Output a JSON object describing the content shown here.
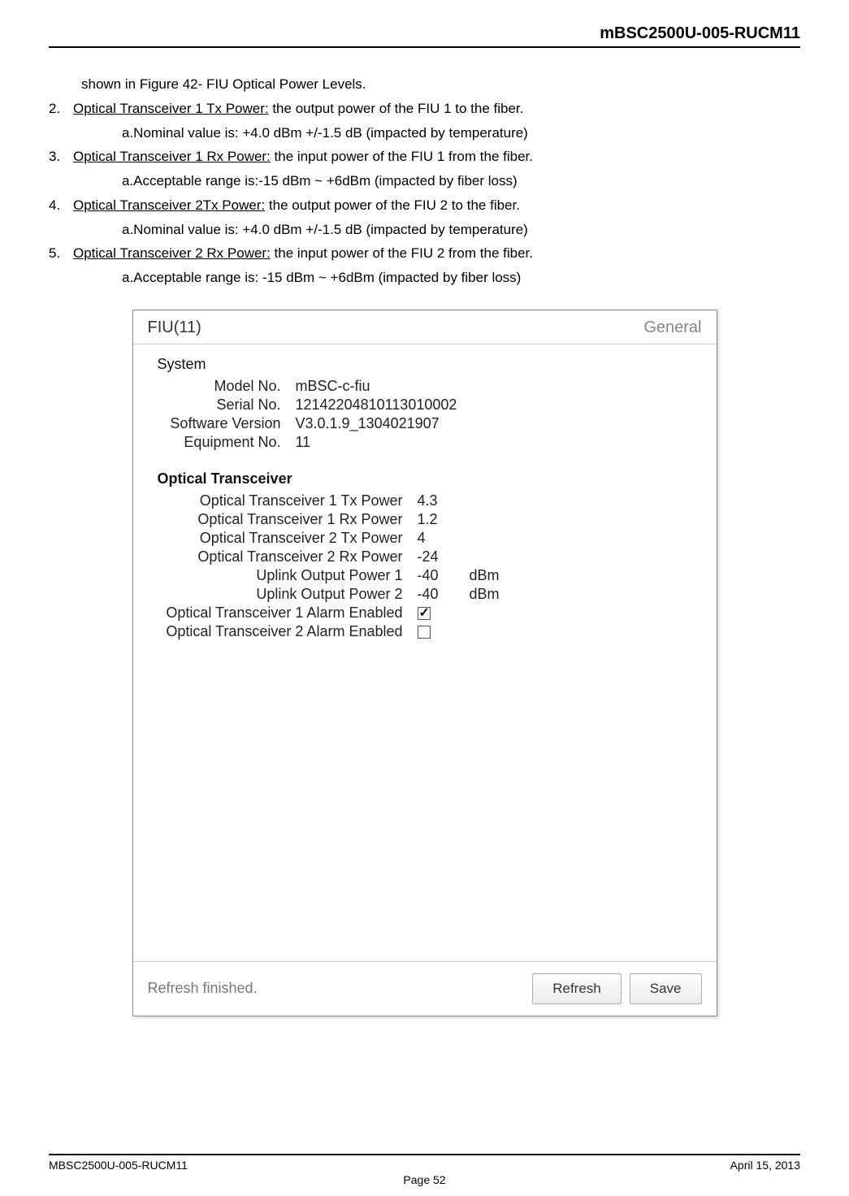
{
  "header": {
    "doc_title": "mBSC2500U-005-RUCM11"
  },
  "intro_line": "shown in Figure 42- FIU Optical Power Levels.",
  "items": [
    {
      "num": "2.",
      "title": "Optical Transceiver 1 Tx Power:",
      "desc": " the output power of the FIU 1 to the fiber.",
      "sub": "a.Nominal value is: +4.0 dBm +/-1.5 dB (impacted by temperature)"
    },
    {
      "num": "3.",
      "title": "Optical Transceiver 1 Rx Power:",
      "desc": " the input power of the FIU 1 from the fiber.",
      "sub": "a.Acceptable range is:-15 dBm ~ +6dBm (impacted by fiber loss)"
    },
    {
      "num": "4.",
      "title": "Optical Transceiver 2Tx Power:",
      "desc": " the output power of the FIU 2 to the fiber.",
      "sub": "a.Nominal value is: +4.0 dBm +/-1.5 dB (impacted by temperature)"
    },
    {
      "num": "5.",
      "title": "Optical Transceiver 2 Rx Power:",
      "desc": " the input power of the FIU 2 from the fiber.",
      "sub": "a.Acceptable range is: -15 dBm ~ +6dBm (impacted by fiber loss)"
    }
  ],
  "figure": {
    "title_left": "FIU(11)",
    "title_right": "General",
    "system_section": "System",
    "system_rows": [
      {
        "label": "Model No.",
        "value": "mBSC-c-fiu"
      },
      {
        "label": "Serial No.",
        "value": "12142204810113010002"
      },
      {
        "label": "Software Version",
        "value": "V3.0.1.9_1304021907"
      },
      {
        "label": "Equipment No.",
        "value": "11"
      }
    ],
    "optical_section": "Optical Transceiver",
    "optical_rows": [
      {
        "label": "Optical Transceiver 1 Tx Power",
        "value": "4.3",
        "unit": ""
      },
      {
        "label": "Optical Transceiver 1 Rx Power",
        "value": "1.2",
        "unit": ""
      },
      {
        "label": "Optical Transceiver 2 Tx Power",
        "value": "4",
        "unit": ""
      },
      {
        "label": "Optical Transceiver 2 Rx Power",
        "value": "-24",
        "unit": ""
      },
      {
        "label": "Uplink Output Power 1",
        "value": "-40",
        "unit": "dBm"
      },
      {
        "label": "Uplink Output Power 2",
        "value": "-40",
        "unit": "dBm"
      }
    ],
    "alarm_rows": [
      {
        "label": "Optical Transceiver 1 Alarm Enabled",
        "checked": true
      },
      {
        "label": "Optical Transceiver 2 Alarm Enabled",
        "checked": false
      }
    ],
    "status": "Refresh finished.",
    "btn_refresh": "Refresh",
    "btn_save": "Save"
  },
  "footer": {
    "left": "MBSC2500U-005-RUCM11",
    "right": "April 15, 2013",
    "center": "Page 52"
  }
}
